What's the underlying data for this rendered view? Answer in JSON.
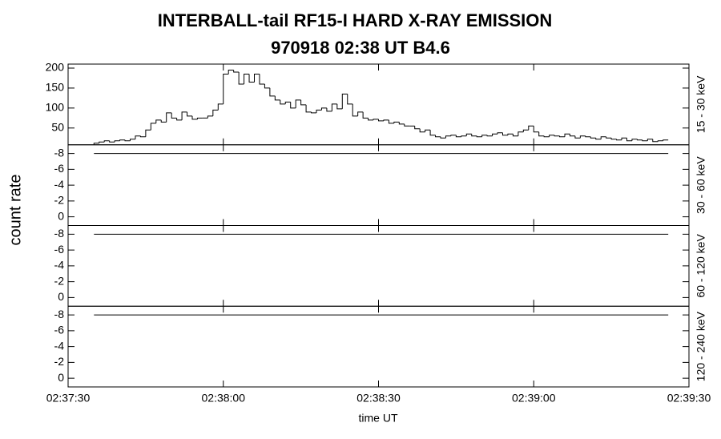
{
  "title": "INTERBALL-tail  RF15-I  HARD  X-RAY  EMISSION",
  "subtitle": "970918     02:38 UT     B4.6",
  "ylabel": "count rate",
  "xlabel": "time UT",
  "chart_data": [
    {
      "type": "histogram",
      "ylabel": "15 - 30 keV",
      "ylim": [
        8,
        210
      ],
      "yticks": [
        50,
        100,
        150,
        200
      ],
      "bins": [
        5,
        6,
        7,
        8,
        9,
        10,
        11,
        12,
        13,
        14,
        15,
        16,
        17,
        18,
        19,
        20,
        21,
        22,
        23,
        24,
        25,
        26,
        27,
        28,
        29,
        30,
        31,
        32,
        33,
        34,
        35,
        36,
        37,
        38,
        39,
        40,
        41,
        42,
        43,
        44,
        45,
        46,
        47,
        48,
        49,
        50,
        51,
        52,
        53,
        54,
        55,
        56,
        57,
        58,
        59,
        60,
        61,
        62,
        63,
        64,
        65,
        66,
        67,
        68,
        69,
        70,
        71,
        72,
        73,
        74,
        75,
        76,
        77,
        78,
        79,
        80,
        81,
        82,
        83,
        84,
        85,
        86,
        87,
        88,
        89,
        90,
        91,
        92,
        93,
        94,
        95,
        96,
        97,
        98,
        99,
        100,
        101,
        102,
        103,
        104,
        105,
        106,
        107,
        108,
        109,
        110,
        111,
        112,
        113,
        114,
        115,
        116
      ],
      "values": [
        12,
        15,
        18,
        15,
        18,
        20,
        18,
        22,
        30,
        28,
        45,
        62,
        70,
        65,
        88,
        75,
        70,
        90,
        80,
        72,
        75,
        75,
        80,
        95,
        110,
        185,
        195,
        190,
        160,
        185,
        165,
        185,
        160,
        150,
        130,
        120,
        110,
        115,
        100,
        120,
        108,
        90,
        88,
        95,
        100,
        92,
        110,
        98,
        135,
        110,
        80,
        90,
        75,
        70,
        72,
        68,
        70,
        62,
        65,
        60,
        55,
        55,
        48,
        40,
        45,
        32,
        28,
        25,
        30,
        32,
        28,
        30,
        35,
        30,
        28,
        32,
        30,
        35,
        38,
        32,
        35,
        30,
        40,
        45,
        55,
        40,
        30,
        28,
        32,
        30,
        28,
        35,
        30,
        25,
        30,
        28,
        25,
        22,
        28,
        25,
        22,
        20,
        25,
        18,
        22,
        20,
        18,
        22,
        16,
        18,
        20
      ],
      "color": "#000000"
    },
    {
      "type": "line",
      "ylabel": "30 - 60 keV",
      "ylim": [
        1.1,
        -9.1
      ],
      "yticks": [
        -8,
        -6,
        -4,
        -2,
        0
      ],
      "x": [
        5,
        116
      ],
      "values": [
        -8,
        -8
      ],
      "color": "#000000"
    },
    {
      "type": "line",
      "ylabel": "60 - 120 keV",
      "ylim": [
        1.1,
        -9.1
      ],
      "yticks": [
        -8,
        -6,
        -4,
        -2,
        0
      ],
      "x": [
        5,
        116
      ],
      "values": [
        -8,
        -8
      ],
      "color": "#000000"
    },
    {
      "type": "line",
      "ylabel": "120 - 240 keV",
      "ylim": [
        1.1,
        -9.1
      ],
      "yticks": [
        -8,
        -6,
        -4,
        -2,
        0
      ],
      "x": [
        5,
        116
      ],
      "values": [
        -8,
        -8
      ],
      "color": "#000000",
      "xlim": [
        0,
        120
      ],
      "xticks": [
        {
          "value": 0,
          "label": "02:37:30"
        },
        {
          "value": 30,
          "label": "02:38:00"
        },
        {
          "value": 60,
          "label": "02:38:30"
        },
        {
          "value": 90,
          "label": "02:39:00"
        },
        {
          "value": 120,
          "label": "02:39:30"
        }
      ]
    }
  ]
}
